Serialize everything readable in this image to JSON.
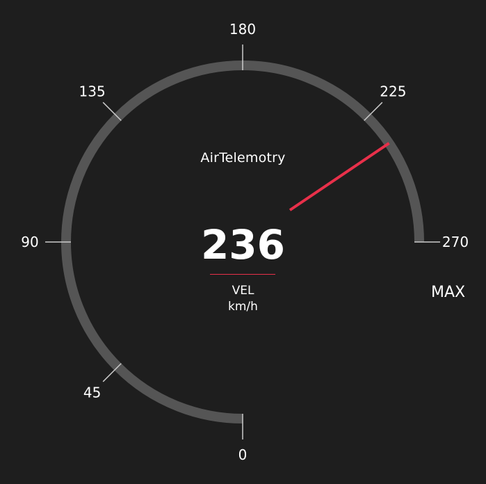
{
  "brand": {
    "prefix": "AirTelemo",
    "accent": "o",
    "suffix": "try"
  },
  "gauge": {
    "value": 236,
    "value_text": "236",
    "quantity": "VEL",
    "unit": "km/h",
    "max_label": "MAX",
    "min": 0,
    "max": 270,
    "ticks": [
      {
        "value": 0,
        "label": "0"
      },
      {
        "value": 45,
        "label": "45"
      },
      {
        "value": 90,
        "label": "90"
      },
      {
        "value": 135,
        "label": "135"
      },
      {
        "value": 180,
        "label": "180"
      },
      {
        "value": 225,
        "label": "225"
      },
      {
        "value": 270,
        "label": "270"
      }
    ]
  },
  "colors": {
    "background": "#1e1e1e",
    "track": "#555555",
    "tick": "#cccccc",
    "needle": "#e8304a",
    "text": "#ffffff"
  }
}
